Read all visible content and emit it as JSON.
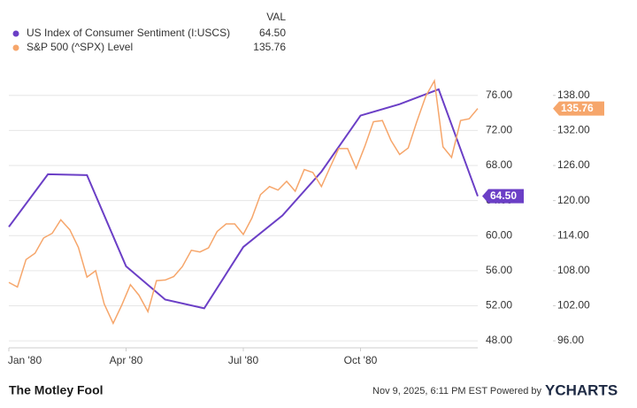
{
  "chart_data": {
    "type": "line",
    "legend_header": "VAL",
    "xlim": [
      0,
      12
    ],
    "xticks": [
      {
        "value": 0,
        "label": "Jan '80"
      },
      {
        "value": 3,
        "label": "Apr '80"
      },
      {
        "value": 6,
        "label": "Jul '80"
      },
      {
        "value": 9,
        "label": "Oct '80"
      }
    ],
    "ylim": [
      47.2,
      78
    ],
    "yticks": [
      {
        "value": 48,
        "label": "48.00"
      },
      {
        "value": 52,
        "label": "52.00"
      },
      {
        "value": 56,
        "label": "56.00"
      },
      {
        "value": 60,
        "label": "60.00"
      },
      {
        "value": 64,
        "label": "64.00"
      },
      {
        "value": 68,
        "label": "68.00"
      },
      {
        "value": 72,
        "label": "72.00"
      },
      {
        "value": 76,
        "label": "76.00"
      }
    ],
    "y2lim": [
      94.8,
      141
    ],
    "y2ticks": [
      {
        "value": 96,
        "label": "96.00"
      },
      {
        "value": 102,
        "label": "102.00"
      },
      {
        "value": 108,
        "label": "108.00"
      },
      {
        "value": 114,
        "label": "114.00"
      },
      {
        "value": 120,
        "label": "120.00"
      },
      {
        "value": 126,
        "label": "126.00"
      },
      {
        "value": 132,
        "label": "132.00"
      },
      {
        "value": 138,
        "label": "138.00"
      }
    ],
    "grid": true,
    "series": [
      {
        "name": "US Index of Consumer Sentiment (I:USCS)",
        "color": "#6b3fc6",
        "axis": "y",
        "last_value_label": "64.50",
        "x": [
          0,
          1,
          2,
          3,
          4,
          5,
          6,
          7,
          8,
          9,
          10,
          11,
          12
        ],
        "values": [
          61.0,
          67.0,
          66.9,
          56.5,
          52.7,
          51.7,
          58.7,
          62.3,
          67.3,
          73.7,
          75.0,
          76.7,
          64.5
        ]
      },
      {
        "name": "S&P 500 (^SPX) Level",
        "color": "#f6a66b",
        "axis": "y2",
        "last_value_label": "135.76",
        "x": [
          0,
          0.22,
          0.44,
          0.67,
          0.89,
          1.11,
          1.33,
          1.56,
          1.78,
          2,
          2.22,
          2.44,
          2.67,
          2.89,
          3.11,
          3.33,
          3.56,
          3.78,
          4,
          4.22,
          4.44,
          4.67,
          4.89,
          5.11,
          5.33,
          5.56,
          5.78,
          6,
          6.22,
          6.44,
          6.67,
          6.89,
          7.11,
          7.33,
          7.56,
          7.78,
          8,
          8.22,
          8.44,
          8.67,
          8.89,
          9.11,
          9.33,
          9.56,
          9.78,
          10,
          10.22,
          10.44,
          10.67,
          10.89,
          11.11,
          11.33,
          11.56,
          11.78,
          12
        ],
        "values": [
          106,
          105.2,
          109.9,
          111,
          113.6,
          114.4,
          116.7,
          115,
          112,
          106.9,
          108,
          102.3,
          99,
          102.1,
          105.6,
          103.8,
          101,
          106.3,
          106.4,
          107,
          108.7,
          111.5,
          111.2,
          111.9,
          114.7,
          116,
          116,
          114.2,
          117,
          121,
          122.4,
          121.8,
          123.3,
          121.6,
          125.3,
          124.8,
          122.4,
          125.7,
          128.9,
          128.9,
          125.5,
          129.3,
          133.5,
          133.7,
          130.3,
          127.9,
          129,
          133.5,
          137.9,
          140.5,
          129.2,
          127.4,
          133.7,
          134,
          135.76
        ]
      }
    ]
  },
  "footer": {
    "brand": "The Motley Fool",
    "timestamp": "Nov 9, 2025, 6:11 PM EST  Powered by",
    "provider": "YCHARTS"
  }
}
